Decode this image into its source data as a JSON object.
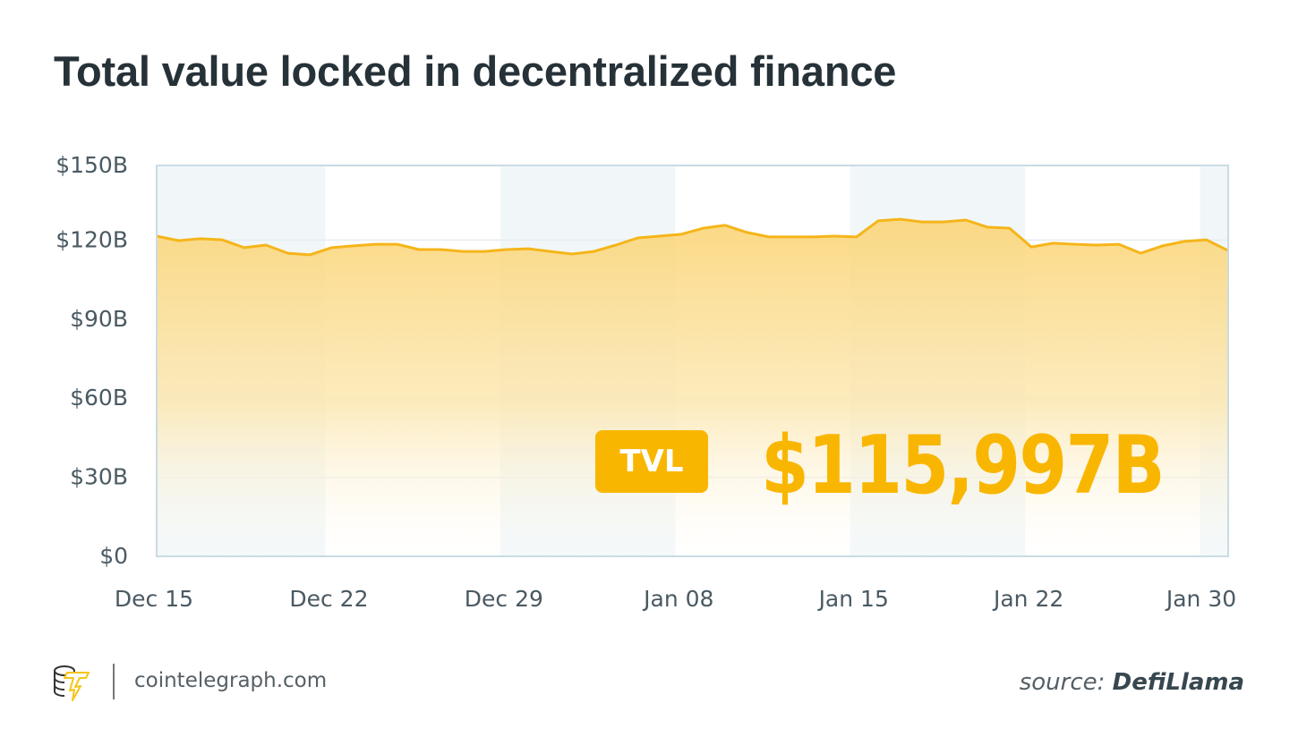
{
  "chart_data": {
    "type": "area",
    "title": "Total value locked in decentralized finance",
    "ylim": [
      0,
      150
    ],
    "yticks": [
      0,
      30,
      60,
      90,
      120,
      150
    ],
    "ytick_labels": [
      "$0",
      "$30B",
      "$60B",
      "$90B",
      "$120B",
      "$150B"
    ],
    "xtick_labels": [
      "Dec 15",
      "Dec 22",
      "Dec 29",
      "Jan 08",
      "Jan 15",
      "Jan 22",
      "Jan 30"
    ],
    "xtick_index": [
      0,
      8,
      16,
      24,
      32,
      40,
      48
    ],
    "values": [
      121.5,
      119.8,
      120.5,
      120.1,
      117.1,
      118.1,
      115.0,
      114.4,
      117.1,
      117.8,
      118.4,
      118.4,
      116.4,
      116.4,
      115.7,
      115.7,
      116.4,
      116.7,
      115.7,
      114.7,
      115.7,
      118.1,
      120.8,
      121.5,
      122.2,
      124.5,
      125.6,
      122.9,
      121.2,
      121.2,
      121.2,
      121.5,
      121.2,
      127.3,
      127.9,
      126.9,
      126.9,
      127.6,
      124.9,
      124.5,
      117.4,
      118.8,
      118.4,
      118.1,
      118.4,
      115.0,
      117.8,
      119.5,
      120.1,
      116.0
    ],
    "grid": true,
    "line_color": "#f5b51a",
    "fill_color": "#fbd77e",
    "band_color": "#f1f7f9"
  },
  "badge": {
    "label": "TVL",
    "value": "$115,997B",
    "color": "#f9b600"
  },
  "footer": {
    "site": "cointelegraph.com",
    "source_prefix": "source:",
    "source_name": "DefiLlama"
  }
}
